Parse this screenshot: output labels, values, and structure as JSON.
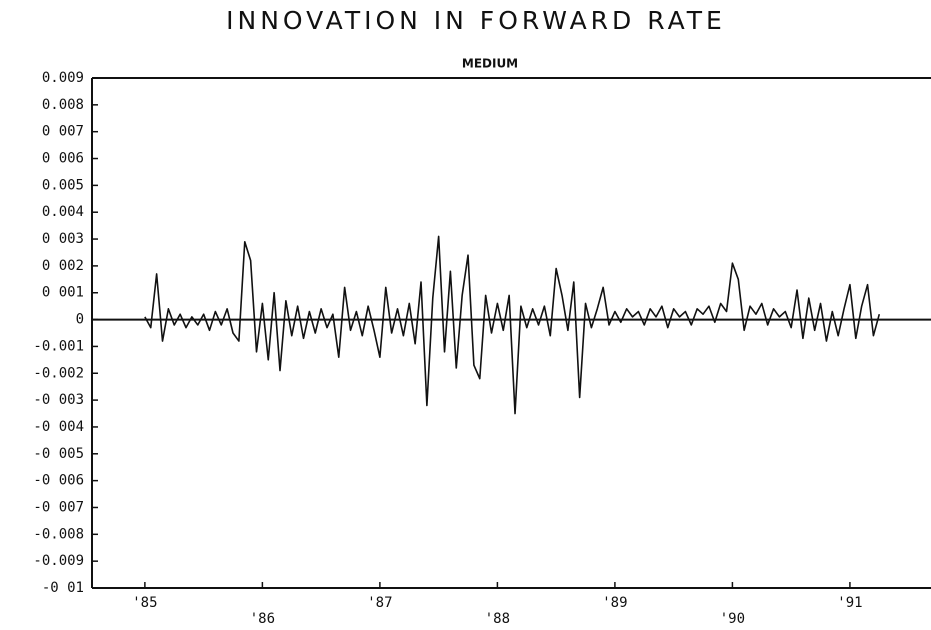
{
  "chart_data": {
    "type": "line",
    "title": "INNOVATION IN FORWARD RATE",
    "subtitle": "MEDIUM",
    "x": [
      1985,
      1985.05,
      1985.1,
      1985.15,
      1985.2,
      1985.25,
      1985.3,
      1985.35,
      1985.4,
      1985.45,
      1985.5,
      1985.55,
      1985.6,
      1985.65,
      1985.7,
      1985.75,
      1985.8,
      1985.85,
      1985.9,
      1985.95,
      1986,
      1986.05,
      1986.1,
      1986.15,
      1986.2,
      1986.25,
      1986.3,
      1986.35,
      1986.4,
      1986.45,
      1986.5,
      1986.55,
      1986.6,
      1986.65,
      1986.7,
      1986.75,
      1986.8,
      1986.85,
      1986.9,
      1986.95,
      1987,
      1987.05,
      1987.1,
      1987.15,
      1987.2,
      1987.25,
      1987.3,
      1987.35,
      1987.4,
      1987.45,
      1987.5,
      1987.55,
      1987.6,
      1987.65,
      1987.7,
      1987.75,
      1987.8,
      1987.85,
      1987.9,
      1987.95,
      1988,
      1988.05,
      1988.1,
      1988.15,
      1988.2,
      1988.25,
      1988.3,
      1988.35,
      1988.4,
      1988.45,
      1988.5,
      1988.55,
      1988.6,
      1988.65,
      1988.7,
      1988.75,
      1988.8,
      1988.85,
      1988.9,
      1988.95,
      1989,
      1989.05,
      1989.1,
      1989.15,
      1989.2,
      1989.25,
      1989.3,
      1989.35,
      1989.4,
      1989.45,
      1989.5,
      1989.55,
      1989.6,
      1989.65,
      1989.7,
      1989.75,
      1989.8,
      1989.85,
      1989.9,
      1989.95,
      1990,
      1990.05,
      1990.1,
      1990.15,
      1990.2,
      1990.25,
      1990.3,
      1990.35,
      1990.4,
      1990.45,
      1990.5,
      1990.55,
      1990.6,
      1990.65,
      1990.7,
      1990.75,
      1990.8,
      1990.85,
      1990.9,
      1990.95,
      1991,
      1991.05,
      1991.1,
      1991.15,
      1991.2,
      1991.25
    ],
    "series": [
      {
        "color": "#111111",
        "values": [
          0.0001,
          -0.0003,
          0.0017,
          -0.0008,
          0.0004,
          -0.0002,
          0.0002,
          -0.0003,
          0.0001,
          -0.0002,
          0.0002,
          -0.0004,
          0.0003,
          -0.0002,
          0.0004,
          -0.0005,
          -0.0008,
          0.0029,
          0.0022,
          -0.0012,
          0.0006,
          -0.0015,
          0.001,
          -0.0019,
          0.0007,
          -0.0006,
          0.0005,
          -0.0007,
          0.0003,
          -0.0005,
          0.0004,
          -0.0003,
          0.0002,
          -0.0014,
          0.0012,
          -0.0004,
          0.0003,
          -0.0006,
          0.0005,
          -0.0004,
          -0.0014,
          0.0012,
          -0.0005,
          0.0004,
          -0.0006,
          0.0006,
          -0.0009,
          0.0014,
          -0.0032,
          0.0008,
          0.0031,
          -0.0012,
          0.0018,
          -0.0018,
          0.0009,
          0.0024,
          -0.0017,
          -0.0022,
          0.0009,
          -0.0005,
          0.0006,
          -0.0004,
          0.0009,
          -0.0035,
          0.0005,
          -0.0003,
          0.0004,
          -0.0002,
          0.0005,
          -0.0006,
          0.0019,
          0.0009,
          -0.0004,
          0.0014,
          -0.0029,
          0.0006,
          -0.0003,
          0.0004,
          0.0012,
          -0.0002,
          0.0003,
          -0.0001,
          0.0004,
          0.0001,
          0.0003,
          -0.0002,
          0.0004,
          0.0001,
          0.0005,
          -0.0003,
          0.0004,
          0.0001,
          0.0003,
          -0.0002,
          0.0004,
          0.0002,
          0.0005,
          -0.0001,
          0.0006,
          0.0003,
          0.0021,
          0.0015,
          -0.0004,
          0.0005,
          0.0002,
          0.0006,
          -0.0002,
          0.0004,
          0.0001,
          0.0003,
          -0.0003,
          0.0011,
          -0.0007,
          0.0008,
          -0.0004,
          0.0006,
          -0.0008,
          0.0003,
          -0.0006,
          0.0004,
          0.0013,
          -0.0007,
          0.0005,
          0.0013,
          -0.0006,
          0.0002
        ]
      }
    ],
    "xlim": [
      1984.55,
      1991.69
    ],
    "xticks": [
      {
        "value": 1985,
        "label": "'85"
      },
      {
        "value": 1986,
        "label": "'86"
      },
      {
        "value": 1987,
        "label": "'87"
      },
      {
        "value": 1988,
        "label": "'88"
      },
      {
        "value": 1989,
        "label": "'89"
      },
      {
        "value": 1990,
        "label": "'90"
      },
      {
        "value": 1991,
        "label": "'91"
      }
    ],
    "ylim": [
      -0.01,
      0.009
    ],
    "yticks": [
      {
        "value": 0.009,
        "label": "0.009"
      },
      {
        "value": 0.008,
        "label": "0.008"
      },
      {
        "value": 0.007,
        "label": "0 007"
      },
      {
        "value": 0.006,
        "label": "0 006"
      },
      {
        "value": 0.005,
        "label": "0.005"
      },
      {
        "value": 0.004,
        "label": "0.004"
      },
      {
        "value": 0.003,
        "label": "0 003"
      },
      {
        "value": 0.002,
        "label": "0 002"
      },
      {
        "value": 0.001,
        "label": "0 001"
      },
      0,
      {
        "value": -0.001,
        "label": "-0.001"
      },
      {
        "value": -0.002,
        "label": "-0.002"
      },
      {
        "value": -0.003,
        "label": "-0 003"
      },
      {
        "value": -0.004,
        "label": "-0 004"
      },
      {
        "value": -0.005,
        "label": "-0 005"
      },
      {
        "value": -0.006,
        "label": "-0 006"
      },
      {
        "value": -0.007,
        "label": "-0 007"
      },
      {
        "value": -0.008,
        "label": "-0.008"
      },
      {
        "value": -0.009,
        "label": "-0.009"
      },
      {
        "value": -0.01,
        "label": "-0 01"
      }
    ],
    "grid": false
  }
}
